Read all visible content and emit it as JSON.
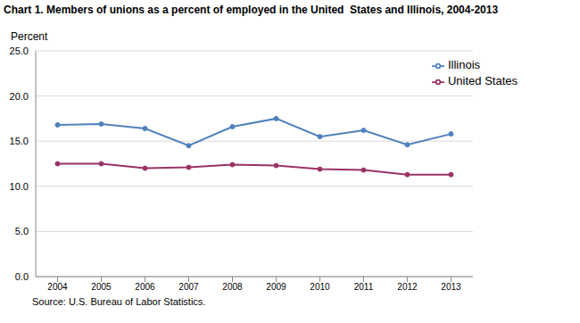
{
  "chart_data": {
    "type": "line",
    "title": "Chart 1. Members of unions as a percent of employed in the United  States and Illinois, 2004-2013",
    "y_label": "Percent",
    "source": "Source: U.S. Bureau of Labor Statistics.",
    "categories": [
      "2004",
      "2005",
      "2006",
      "2007",
      "2008",
      "2009",
      "2010",
      "2011",
      "2012",
      "2013"
    ],
    "series": [
      {
        "name": "United States",
        "color": "#993366",
        "marker": "circle",
        "values": [
          12.5,
          12.5,
          12.0,
          12.1,
          12.4,
          12.3,
          11.9,
          11.8,
          11.3,
          11.3
        ]
      },
      {
        "name": "Illinois",
        "color": "#4f81bd",
        "marker": "circle",
        "values": [
          16.8,
          16.9,
          16.4,
          14.5,
          16.6,
          17.5,
          15.5,
          16.2,
          14.6,
          15.8
        ]
      }
    ],
    "ylim": [
      0,
      25
    ],
    "yticks": [
      {
        "value": 0,
        "label": "0.0"
      },
      {
        "value": 5,
        "label": "5.0"
      },
      {
        "value": 10,
        "label": "10.0"
      },
      {
        "value": 15,
        "label": "15.0"
      },
      {
        "value": 20,
        "label": "20.0"
      },
      {
        "value": 25,
        "label": "25.0"
      }
    ],
    "grid": true,
    "legend": "upper right"
  }
}
